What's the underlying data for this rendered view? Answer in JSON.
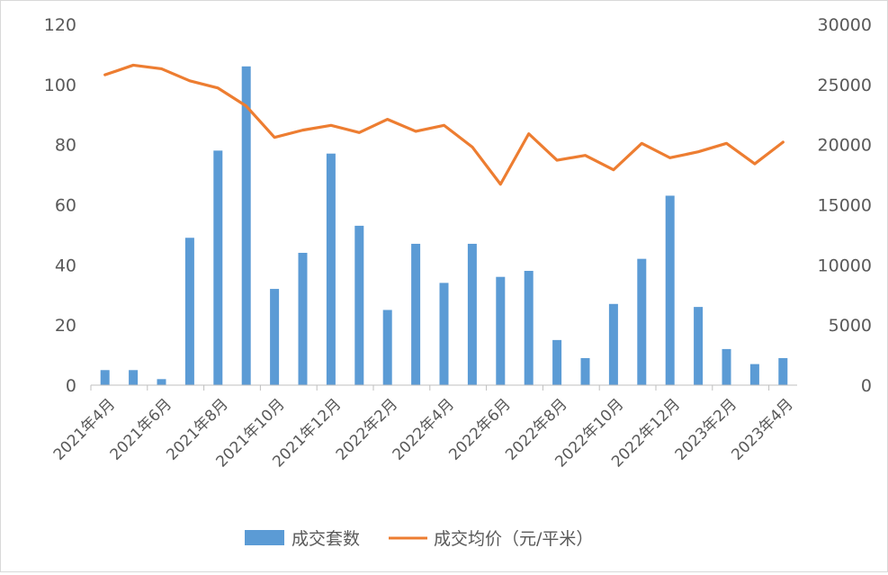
{
  "chart_data": {
    "type": "bar",
    "categories": [
      "2021年4月",
      "2021年5月",
      "2021年6月",
      "2021年7月",
      "2021年8月",
      "2021年9月",
      "2021年10月",
      "2021年11月",
      "2021年12月",
      "2022年1月",
      "2022年2月",
      "2022年3月",
      "2022年4月",
      "2022年5月",
      "2022年6月",
      "2022年7月",
      "2022年8月",
      "2022年9月",
      "2022年10月",
      "2022年11月",
      "2022年12月",
      "2023年1月",
      "2023年2月",
      "2023年3月",
      "2023年4月"
    ],
    "x_tick_labels": [
      "2021年4月",
      "2021年6月",
      "2021年8月",
      "2021年10月",
      "2021年12月",
      "2022年2月",
      "2022年4月",
      "2022年6月",
      "2022年8月",
      "2022年10月",
      "2022年12月",
      "2023年2月",
      "2023年4月"
    ],
    "series": [
      {
        "name": "成交套数",
        "type": "bar",
        "axis": "left",
        "color": "#5B9BD5",
        "values": [
          5,
          5,
          2,
          49,
          78,
          106,
          32,
          44,
          77,
          53,
          25,
          47,
          34,
          47,
          36,
          38,
          15,
          9,
          27,
          42,
          63,
          26,
          12,
          7,
          9
        ]
      },
      {
        "name": "成交均价（元/平米）",
        "type": "line",
        "axis": "right",
        "color": "#ED7D31",
        "values": [
          25800,
          26600,
          26300,
          25300,
          24700,
          23200,
          20600,
          21200,
          21600,
          21000,
          22100,
          21100,
          21600,
          19800,
          16700,
          20900,
          18700,
          19100,
          17900,
          20100,
          18900,
          19400,
          20100,
          18400,
          20200
        ]
      }
    ],
    "y_left": {
      "lim": [
        0,
        120
      ],
      "ticks": [
        "0",
        "20",
        "40",
        "60",
        "80",
        "100",
        "120"
      ]
    },
    "y_right": {
      "lim": [
        0,
        30000
      ],
      "ticks": [
        "0",
        "5000",
        "10000",
        "15000",
        "20000",
        "25000",
        "30000"
      ]
    },
    "grid": false,
    "legend_position": "bottom"
  }
}
